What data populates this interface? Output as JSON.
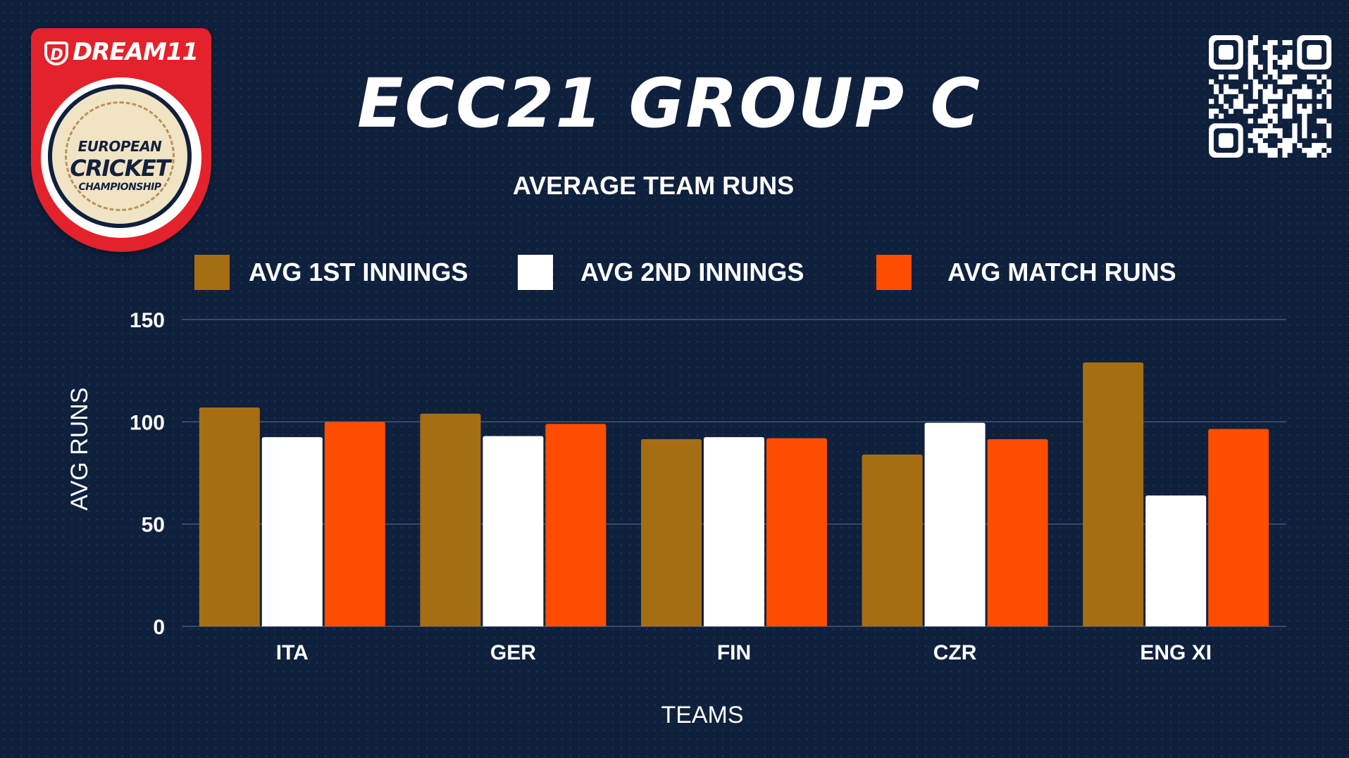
{
  "logo": {
    "brand": "DREAM11",
    "line1": "EUROPEAN",
    "line2": "CRICKET",
    "line3": "CHAMPIONSHIP"
  },
  "header": {
    "title": "ECC21 GROUP C",
    "subtitle": "AVERAGE TEAM RUNS"
  },
  "qr_icon": "qr-code-icon",
  "colors": {
    "background": "#0f203d",
    "series1": "#a66e13",
    "series2": "#ffffff",
    "series3": "#ff4d00"
  },
  "chart_data": {
    "type": "bar",
    "title": "AVERAGE TEAM RUNS",
    "xlabel": "TEAMS",
    "ylabel": "AVG RUNS",
    "ylim": [
      0,
      150
    ],
    "yticks": [
      0,
      50,
      100,
      150
    ],
    "grid": true,
    "legend_position": "top",
    "categories": [
      "ITA",
      "GER",
      "FIN",
      "CZR",
      "ENG XI"
    ],
    "series": [
      {
        "name": "AVG 1ST INNINGS",
        "color": "#a66e13",
        "values": [
          107,
          104,
          91.5,
          84,
          129
        ]
      },
      {
        "name": "AVG 2ND INNINGS",
        "color": "#ffffff",
        "values": [
          92.5,
          93,
          92.5,
          99.5,
          64
        ]
      },
      {
        "name": "AVG MATCH RUNS",
        "color": "#ff4d00",
        "values": [
          100,
          99,
          92,
          91.5,
          96.5
        ]
      }
    ]
  }
}
